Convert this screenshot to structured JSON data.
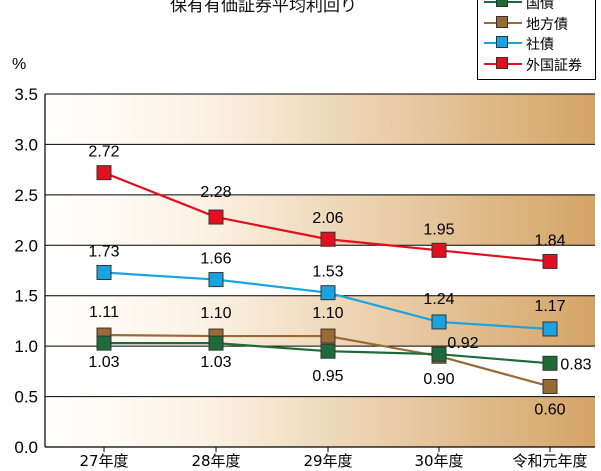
{
  "title": "保有有価証券平均利回り",
  "chart_data": {
    "type": "line",
    "ylabel": "%",
    "ylim": [
      0.0,
      3.5
    ],
    "yticks": [
      "0.0",
      "0.5",
      "1.0",
      "1.5",
      "2.0",
      "2.5",
      "3.0",
      "3.5"
    ],
    "categories": [
      "27年度",
      "28年度",
      "29年度",
      "30年度",
      "令和元年度"
    ],
    "grid": true,
    "legend_position": "top-right",
    "series": [
      {
        "name": "国債",
        "color": "#1e6b3a",
        "values": [
          1.03,
          1.03,
          0.95,
          0.92,
          0.83
        ],
        "labels": [
          "1.03",
          "1.03",
          "0.95",
          "0.92",
          "0.83"
        ]
      },
      {
        "name": "地方債",
        "color": "#9a6a35",
        "values": [
          1.11,
          1.1,
          1.1,
          0.9,
          0.6
        ],
        "labels": [
          "1.11",
          "1.10",
          "1.10",
          "0.90",
          "0.60"
        ]
      },
      {
        "name": "社債",
        "color": "#1aa3e0",
        "values": [
          1.73,
          1.66,
          1.53,
          1.24,
          1.17
        ],
        "labels": [
          "1.73",
          "1.66",
          "1.53",
          "1.24",
          "1.17"
        ]
      },
      {
        "name": "外国証券",
        "color": "#e0101e",
        "values": [
          2.72,
          2.28,
          2.06,
          1.95,
          1.84
        ],
        "labels": [
          "2.72",
          "2.28",
          "2.06",
          "1.95",
          "1.84"
        ]
      }
    ]
  }
}
